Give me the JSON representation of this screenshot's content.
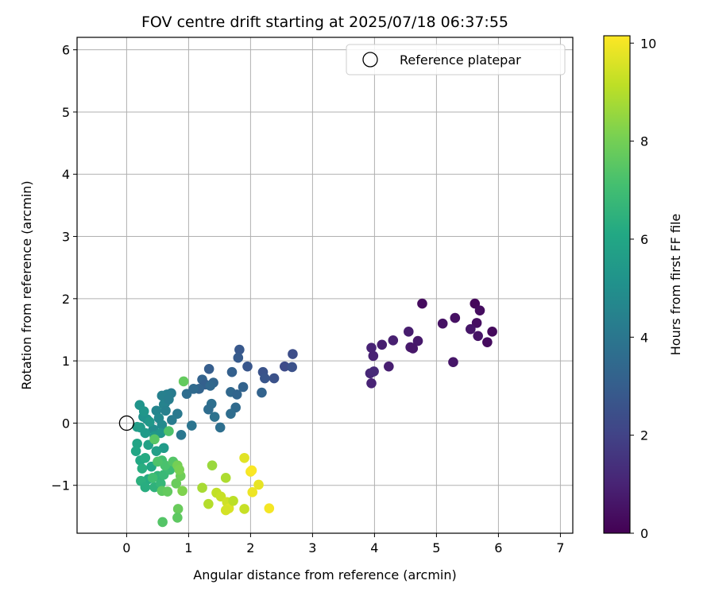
{
  "chart_data": {
    "type": "scatter",
    "title": "FOV centre drift starting at 2025/07/18 06:37:55",
    "xlabel": "Angular distance from reference (arcmin)",
    "ylabel": "Rotation from reference (arcmin)",
    "xlim": [
      -0.8,
      7.2
    ],
    "ylim": [
      -1.77,
      6.2
    ],
    "x_ticks": [
      0,
      1,
      2,
      3,
      4,
      5,
      6,
      7
    ],
    "y_ticks": [
      -1,
      0,
      1,
      2,
      3,
      4,
      5,
      6
    ],
    "grid": true,
    "legend": {
      "placement": "upper-right",
      "entries": [
        "Reference platepar"
      ]
    },
    "reference": {
      "x": 0,
      "y": 0,
      "marker": "open-circle"
    },
    "colorbar": {
      "label": "Hours from first FF file",
      "min": 0,
      "max": 10.15,
      "ticks": [
        0,
        2,
        4,
        6,
        8,
        10
      ],
      "colormap": "viridis"
    },
    "points": [
      [
        4.77,
        1.92,
        0.3
      ],
      [
        5.62,
        1.92,
        0.2
      ],
      [
        5.7,
        1.81,
        0.35
      ],
      [
        5.1,
        1.6,
        0.5
      ],
      [
        5.3,
        1.69,
        0.45
      ],
      [
        5.65,
        1.61,
        0.4
      ],
      [
        5.55,
        1.51,
        0.6
      ],
      [
        5.9,
        1.47,
        0.25
      ],
      [
        5.67,
        1.4,
        0.55
      ],
      [
        5.82,
        1.3,
        0.3
      ],
      [
        4.55,
        1.47,
        0.8
      ],
      [
        4.7,
        1.32,
        0.7
      ],
      [
        4.3,
        1.33,
        0.9
      ],
      [
        4.12,
        1.26,
        0.85
      ],
      [
        3.95,
        1.21,
        1.0
      ],
      [
        4.58,
        1.22,
        0.75
      ],
      [
        4.62,
        1.2,
        0.65
      ],
      [
        5.27,
        0.98,
        0.6
      ],
      [
        3.98,
        1.08,
        0.95
      ],
      [
        4.23,
        0.91,
        0.85
      ],
      [
        3.93,
        0.8,
        1.1
      ],
      [
        3.99,
        0.83,
        1.2
      ],
      [
        3.95,
        0.64,
        1.0
      ],
      [
        2.68,
        1.11,
        2.4
      ],
      [
        2.55,
        0.91,
        2.3
      ],
      [
        2.67,
        0.9,
        2.5
      ],
      [
        2.38,
        0.72,
        2.55
      ],
      [
        2.2,
        0.82,
        2.6
      ],
      [
        2.23,
        0.72,
        2.7
      ],
      [
        1.82,
        1.18,
        2.8
      ],
      [
        1.8,
        1.05,
        2.9
      ],
      [
        1.95,
        0.91,
        2.7
      ],
      [
        1.33,
        0.87,
        3.0
      ],
      [
        1.7,
        0.82,
        3.1
      ],
      [
        1.22,
        0.7,
        3.2
      ],
      [
        1.4,
        0.65,
        3.3
      ],
      [
        1.27,
        0.62,
        3.1
      ],
      [
        1.17,
        0.55,
        3.25
      ],
      [
        1.35,
        0.6,
        3.4
      ],
      [
        1.88,
        0.58,
        3.2
      ],
      [
        1.68,
        0.5,
        3.4
      ],
      [
        1.78,
        0.46,
        3.3
      ],
      [
        2.18,
        0.49,
        3.2
      ],
      [
        0.97,
        0.47,
        3.6
      ],
      [
        1.08,
        0.55,
        3.5
      ],
      [
        1.37,
        0.31,
        3.7
      ],
      [
        1.76,
        0.25,
        3.5
      ],
      [
        1.32,
        0.22,
        3.6
      ],
      [
        1.68,
        0.15,
        3.6
      ],
      [
        1.42,
        0.1,
        3.8
      ],
      [
        1.51,
        -0.07,
        3.7
      ],
      [
        1.05,
        -0.04,
        3.9
      ],
      [
        0.88,
        -0.19,
        4.0
      ],
      [
        0.82,
        0.15,
        4.1
      ],
      [
        0.73,
        0.05,
        4.2
      ],
      [
        0.62,
        0.32,
        4.1
      ],
      [
        0.72,
        0.48,
        4.2
      ],
      [
        0.65,
        0.46,
        4.3
      ],
      [
        0.57,
        0.44,
        4.4
      ],
      [
        0.6,
        0.3,
        4.5
      ],
      [
        0.48,
        0.2,
        4.6
      ],
      [
        0.68,
        0.38,
        4.3
      ],
      [
        0.63,
        0.2,
        4.4
      ],
      [
        0.52,
        0.08,
        4.7
      ],
      [
        0.57,
        -0.03,
        4.8
      ],
      [
        0.43,
        -0.1,
        4.9
      ],
      [
        0.33,
        0.06,
        5.0
      ],
      [
        0.27,
        0.1,
        5.1
      ],
      [
        0.21,
        0.29,
        5.2
      ],
      [
        0.28,
        0.19,
        5.3
      ],
      [
        0.37,
        0.02,
        5.4
      ],
      [
        0.22,
        -0.07,
        5.5
      ],
      [
        0.17,
        -0.06,
        5.6
      ],
      [
        0.3,
        -0.16,
        5.5
      ],
      [
        0.45,
        -0.21,
        5.4
      ],
      [
        0.55,
        -0.16,
        5.3
      ],
      [
        0.6,
        -0.4,
        5.5
      ],
      [
        0.48,
        -0.45,
        5.7
      ],
      [
        0.35,
        -0.35,
        5.8
      ],
      [
        0.17,
        -0.33,
        5.9
      ],
      [
        0.15,
        -0.45,
        6.0
      ],
      [
        0.22,
        -0.6,
        6.1
      ],
      [
        0.3,
        -0.56,
        6.2
      ],
      [
        0.4,
        -0.7,
        6.0
      ],
      [
        0.25,
        -0.73,
        6.3
      ],
      [
        0.35,
        -0.9,
        6.2
      ],
      [
        0.23,
        -0.93,
        6.4
      ],
      [
        0.3,
        -1.03,
        6.3
      ],
      [
        0.45,
        -1.03,
        6.5
      ],
      [
        0.5,
        -0.85,
        6.6
      ],
      [
        0.55,
        -0.97,
        6.7
      ],
      [
        0.6,
        -0.83,
        6.8
      ],
      [
        0.7,
        -0.75,
        6.9
      ],
      [
        0.42,
        -0.88,
        7.0
      ],
      [
        0.57,
        -0.6,
        7.1
      ],
      [
        0.62,
        -0.68,
        7.2
      ],
      [
        0.5,
        -0.62,
        7.3
      ],
      [
        0.75,
        -0.62,
        7.4
      ],
      [
        0.68,
        -0.13,
        7.3
      ],
      [
        0.45,
        -0.26,
        7.5
      ],
      [
        0.57,
        -1.09,
        7.6
      ],
      [
        0.66,
        -1.1,
        7.7
      ],
      [
        0.8,
        -0.97,
        7.8
      ],
      [
        0.87,
        -0.85,
        7.9
      ],
      [
        0.82,
        -0.68,
        8.0
      ],
      [
        0.85,
        -0.75,
        8.1
      ],
      [
        0.9,
        -1.09,
        8.2
      ],
      [
        0.83,
        -1.38,
        7.8
      ],
      [
        0.82,
        -1.52,
        7.6
      ],
      [
        0.58,
        -1.59,
        7.4
      ],
      [
        0.92,
        0.67,
        7.7
      ],
      [
        1.38,
        -0.68,
        8.6
      ],
      [
        1.22,
        -1.04,
        8.8
      ],
      [
        1.32,
        -1.3,
        9.0
      ],
      [
        1.45,
        -1.12,
        9.2
      ],
      [
        1.52,
        -1.18,
        9.3
      ],
      [
        1.6,
        -0.88,
        8.9
      ],
      [
        1.62,
        -1.27,
        9.4
      ],
      [
        1.65,
        -1.37,
        9.6
      ],
      [
        1.6,
        -1.4,
        9.5
      ],
      [
        1.72,
        -1.25,
        9.1
      ],
      [
        1.9,
        -1.38,
        9.3
      ],
      [
        1.9,
        -0.56,
        9.7
      ],
      [
        2.0,
        -0.78,
        10.0
      ],
      [
        2.02,
        -0.76,
        10.1
      ],
      [
        2.13,
        -0.99,
        9.8
      ],
      [
        2.03,
        -1.11,
        9.9
      ],
      [
        2.3,
        -1.37,
        10.0
      ]
    ]
  }
}
